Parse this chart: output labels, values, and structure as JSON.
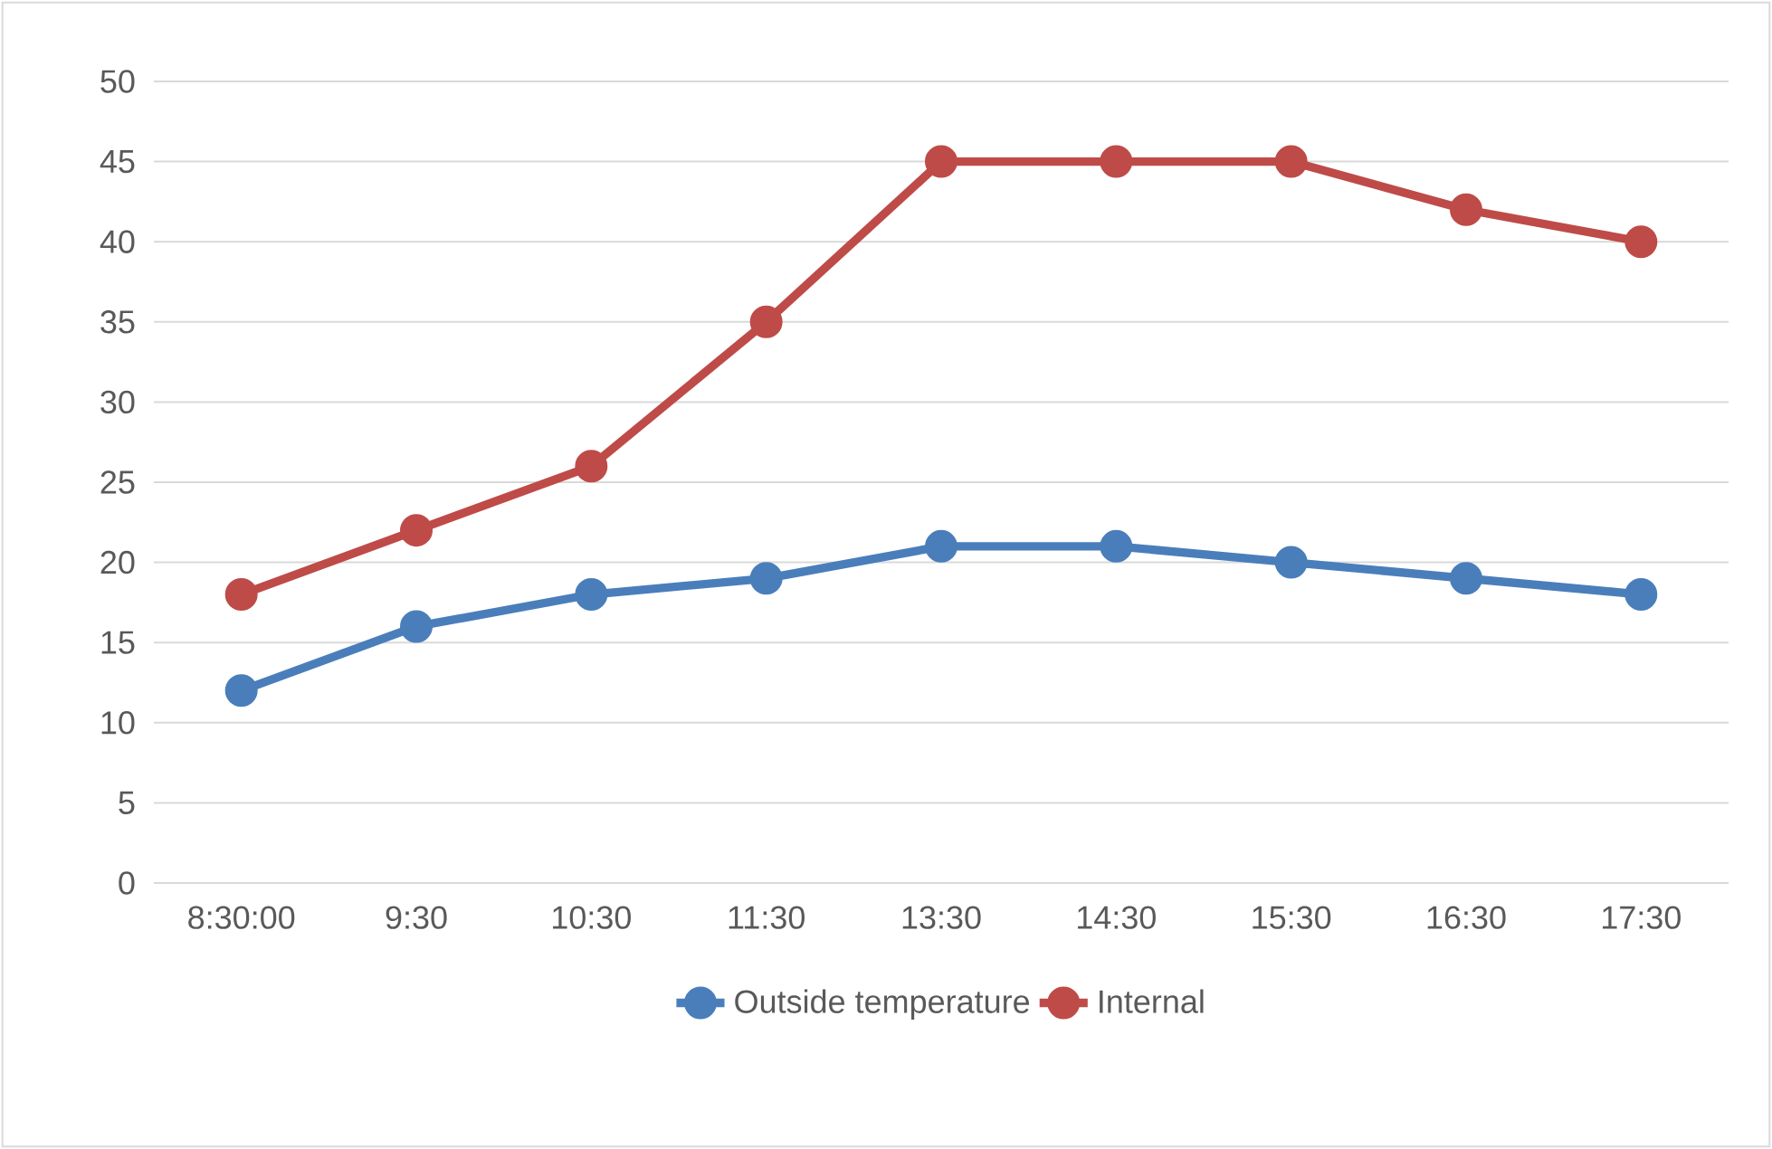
{
  "chart_data": {
    "type": "line",
    "categories": [
      "8:30:00",
      "9:30",
      "10:30",
      "11:30",
      "13:30",
      "14:30",
      "15:30",
      "16:30",
      "17:30"
    ],
    "series": [
      {
        "name": "Outside temperature",
        "color": "#4a7ebb",
        "values": [
          12,
          16,
          18,
          19,
          21,
          21,
          20,
          19,
          18
        ]
      },
      {
        "name": "Internal",
        "color": "#be4b48",
        "values": [
          18,
          22,
          26,
          35,
          45,
          45,
          45,
          42,
          40
        ]
      }
    ],
    "ylim": [
      0,
      50
    ],
    "yticks": [
      0,
      5,
      10,
      15,
      20,
      25,
      30,
      35,
      40,
      45,
      50
    ],
    "grid": "y",
    "legend": "bottom",
    "marker": "circle",
    "line_style": "solid"
  }
}
